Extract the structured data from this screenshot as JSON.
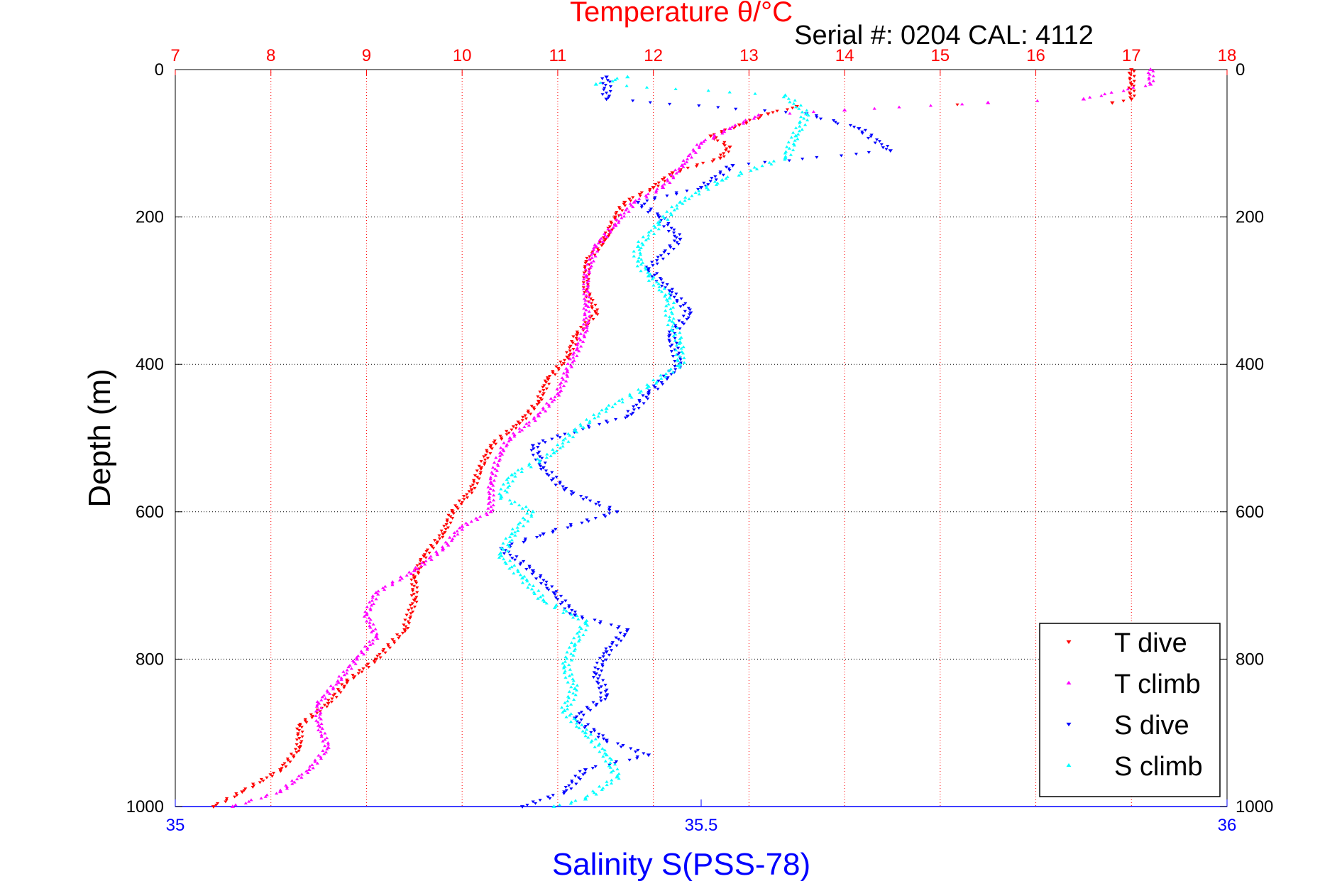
{
  "chart_data": {
    "type": "scatter",
    "title": "Temperature θ/°C",
    "subtitle": "Serial #: 0204  CAL: 4112",
    "xlabel_bottom": "Salinity S(PSS-78)",
    "xlabel_top": "Temperature θ/°C",
    "ylabel": "Depth (m)",
    "xlim_top": [
      7,
      18
    ],
    "xlim_bottom": [
      35,
      36
    ],
    "ylim": [
      0,
      1000
    ],
    "y_reversed": true,
    "grid": true,
    "top_ticks": [
      "7",
      "8",
      "9",
      "10",
      "11",
      "12",
      "13",
      "14",
      "15",
      "16",
      "17",
      "18"
    ],
    "bottom_ticks": [
      "35",
      "35.5",
      "36"
    ],
    "left_ticks": [
      "0",
      "200",
      "400",
      "600",
      "800",
      "1000"
    ],
    "right_ticks": [
      "0",
      "200",
      "400",
      "600",
      "800",
      "1000"
    ],
    "legend_position": "bottom-right",
    "colors": {
      "title": "#ff0000",
      "top_axis": "#ff0000",
      "bottom_axis": "#0000ff",
      "t_dive": "#ff0000",
      "t_climb": "#ff00ff",
      "s_dive": "#0000ff",
      "s_climb": "#00ffff"
    },
    "series": [
      {
        "name": "T dive",
        "axis": "top",
        "marker": "triangle-down",
        "points": [
          [
            17.0,
            0
          ],
          [
            17.0,
            20
          ],
          [
            17.0,
            40
          ],
          [
            16.8,
            45
          ],
          [
            13.5,
            50
          ],
          [
            13.2,
            60
          ],
          [
            12.9,
            75
          ],
          [
            12.6,
            90
          ],
          [
            12.8,
            105
          ],
          [
            12.7,
            120
          ],
          [
            12.2,
            140
          ],
          [
            12.0,
            160
          ],
          [
            11.7,
            180
          ],
          [
            11.6,
            200
          ],
          [
            11.5,
            230
          ],
          [
            11.3,
            260
          ],
          [
            11.3,
            300
          ],
          [
            11.4,
            330
          ],
          [
            11.2,
            360
          ],
          [
            11.1,
            390
          ],
          [
            10.9,
            420
          ],
          [
            10.8,
            450
          ],
          [
            10.6,
            480
          ],
          [
            10.3,
            510
          ],
          [
            10.2,
            540
          ],
          [
            10.1,
            570
          ],
          [
            9.9,
            600
          ],
          [
            9.8,
            630
          ],
          [
            9.6,
            660
          ],
          [
            9.5,
            690
          ],
          [
            9.5,
            720
          ],
          [
            9.4,
            760
          ],
          [
            9.1,
            800
          ],
          [
            8.8,
            830
          ],
          [
            8.6,
            860
          ],
          [
            8.3,
            890
          ],
          [
            8.3,
            920
          ],
          [
            8.1,
            950
          ],
          [
            7.7,
            980
          ],
          [
            7.4,
            1000
          ]
        ]
      },
      {
        "name": "T climb",
        "axis": "top",
        "marker": "triangle-up",
        "points": [
          [
            17.2,
            0
          ],
          [
            17.2,
            20
          ],
          [
            16.5,
            40
          ],
          [
            15.5,
            45
          ],
          [
            14.0,
            55
          ],
          [
            13.1,
            62
          ],
          [
            12.8,
            80
          ],
          [
            12.5,
            100
          ],
          [
            12.3,
            130
          ],
          [
            12.1,
            160
          ],
          [
            11.8,
            180
          ],
          [
            11.6,
            210
          ],
          [
            11.4,
            240
          ],
          [
            11.3,
            280
          ],
          [
            11.3,
            320
          ],
          [
            11.3,
            350
          ],
          [
            11.2,
            380
          ],
          [
            11.1,
            410
          ],
          [
            11.0,
            440
          ],
          [
            10.8,
            470
          ],
          [
            10.5,
            500
          ],
          [
            10.4,
            520
          ],
          [
            10.3,
            560
          ],
          [
            10.3,
            600
          ],
          [
            10.0,
            620
          ],
          [
            9.8,
            650
          ],
          [
            9.5,
            680
          ],
          [
            9.1,
            710
          ],
          [
            9.0,
            740
          ],
          [
            9.1,
            770
          ],
          [
            8.9,
            800
          ],
          [
            8.7,
            830
          ],
          [
            8.5,
            860
          ],
          [
            8.5,
            890
          ],
          [
            8.6,
            920
          ],
          [
            8.4,
            950
          ],
          [
            8.1,
            980
          ],
          [
            7.6,
            1000
          ]
        ]
      },
      {
        "name": "S dive",
        "axis": "bottom",
        "marker": "triangle-down",
        "points": [
          [
            35.41,
            10
          ],
          [
            35.41,
            40
          ],
          [
            35.6,
            60
          ],
          [
            35.65,
            80
          ],
          [
            35.68,
            110
          ],
          [
            35.53,
            130
          ],
          [
            35.5,
            160
          ],
          [
            35.44,
            180
          ],
          [
            35.46,
            200
          ],
          [
            35.48,
            230
          ],
          [
            35.45,
            270
          ],
          [
            35.47,
            300
          ],
          [
            35.49,
            330
          ],
          [
            35.47,
            360
          ],
          [
            35.48,
            400
          ],
          [
            35.45,
            440
          ],
          [
            35.43,
            470
          ],
          [
            35.38,
            490
          ],
          [
            35.34,
            510
          ],
          [
            35.35,
            540
          ],
          [
            35.37,
            570
          ],
          [
            35.42,
            600
          ],
          [
            35.35,
            630
          ],
          [
            35.31,
            650
          ],
          [
            35.34,
            680
          ],
          [
            35.36,
            710
          ],
          [
            35.38,
            740
          ],
          [
            35.43,
            760
          ],
          [
            35.41,
            790
          ],
          [
            35.4,
            820
          ],
          [
            35.41,
            850
          ],
          [
            35.38,
            880
          ],
          [
            35.41,
            910
          ],
          [
            35.45,
            930
          ],
          [
            35.39,
            950
          ],
          [
            35.37,
            980
          ],
          [
            35.33,
            1000
          ]
        ]
      },
      {
        "name": "S climb",
        "axis": "bottom",
        "marker": "triangle-up",
        "points": [
          [
            35.43,
            10
          ],
          [
            35.4,
            20
          ],
          [
            35.58,
            35
          ],
          [
            35.6,
            60
          ],
          [
            35.59,
            90
          ],
          [
            35.58,
            120
          ],
          [
            35.52,
            150
          ],
          [
            35.48,
            180
          ],
          [
            35.46,
            210
          ],
          [
            35.44,
            240
          ],
          [
            35.44,
            260
          ],
          [
            35.45,
            280
          ],
          [
            35.47,
            310
          ],
          [
            35.47,
            340
          ],
          [
            35.48,
            370
          ],
          [
            35.48,
            400
          ],
          [
            35.45,
            430
          ],
          [
            35.41,
            460
          ],
          [
            35.38,
            490
          ],
          [
            35.36,
            520
          ],
          [
            35.32,
            550
          ],
          [
            35.31,
            580
          ],
          [
            35.34,
            600
          ],
          [
            35.32,
            630
          ],
          [
            35.31,
            660
          ],
          [
            35.33,
            690
          ],
          [
            35.35,
            720
          ],
          [
            35.39,
            750
          ],
          [
            35.38,
            780
          ],
          [
            35.37,
            810
          ],
          [
            35.38,
            840
          ],
          [
            35.37,
            870
          ],
          [
            35.39,
            900
          ],
          [
            35.41,
            930
          ],
          [
            35.42,
            960
          ],
          [
            35.39,
            990
          ],
          [
            35.36,
            1000
          ]
        ]
      }
    ]
  }
}
